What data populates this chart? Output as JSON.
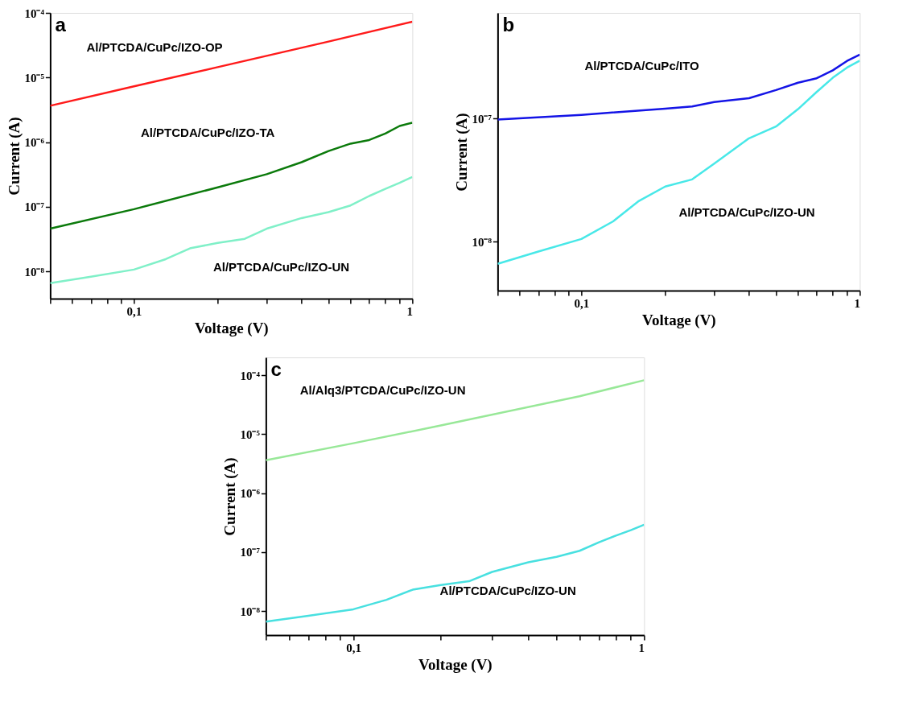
{
  "chart_data": [
    {
      "type": "line",
      "title": "a",
      "xlabel": "Voltage (V)",
      "ylabel": "Current  (A)",
      "log": "xy",
      "grid": false,
      "marker": "none",
      "line_style": "solid",
      "xlim": [
        0.05,
        1
      ],
      "ylim": [
        3.8e-09,
        0.0001
      ],
      "xticks": [
        {
          "value": 0.05,
          "label": null
        },
        {
          "value": 0.06,
          "label": null
        },
        {
          "value": 0.07,
          "label": null
        },
        {
          "value": 0.08,
          "label": null
        },
        {
          "value": 0.09,
          "label": null
        },
        {
          "value": 0.1,
          "label": "0,1"
        },
        {
          "value": 0.2,
          "label": null
        },
        {
          "value": 0.3,
          "label": null
        },
        {
          "value": 0.4,
          "label": null
        },
        {
          "value": 0.5,
          "label": null
        },
        {
          "value": 0.6,
          "label": null
        },
        {
          "value": 0.7,
          "label": null
        },
        {
          "value": 0.8,
          "label": null
        },
        {
          "value": 0.9,
          "label": null
        },
        1
      ],
      "yticks": [
        {
          "value": 1e-08,
          "label": "10⁻⁸"
        },
        {
          "value": 1e-07,
          "label": "10⁻⁷"
        },
        {
          "value": 1e-06,
          "label": "10⁻⁶"
        },
        {
          "value": 1e-05,
          "label": "10⁻⁵"
        },
        {
          "value": 0.0001,
          "label": "10⁻⁴"
        }
      ],
      "series": [
        {
          "name": "Al/PTCDA/CuPc/IZO-OP",
          "color": "#ff1a1a",
          "x": [
            0.05,
            0.1,
            0.2,
            0.5,
            1
          ],
          "values": [
            3.66e-06,
            7.3e-06,
            1.45e-05,
            3.6e-05,
            7.3e-05
          ]
        },
        {
          "name": "Al/PTCDA/CuPc/IZO-TA",
          "color": "#0b7a0b",
          "x": [
            0.05,
            0.1,
            0.2,
            0.3,
            0.4,
            0.5,
            0.6,
            0.7,
            0.8,
            0.9,
            1
          ],
          "values": [
            4.6e-08,
            9.2e-08,
            2e-07,
            3.2e-07,
            4.9e-07,
            7.3e-07,
            9.5e-07,
            1.08e-06,
            1.36e-06,
            1.78e-06,
            2e-06
          ]
        },
        {
          "name": "Al/PTCDA/CuPc/IZO-UN",
          "color": "#80f0c8",
          "x": [
            0.05,
            0.07,
            0.1,
            0.13,
            0.16,
            0.2,
            0.25,
            0.3,
            0.4,
            0.5,
            0.6,
            0.7,
            0.8,
            0.9,
            1
          ],
          "values": [
            6.6e-09,
            8.3e-09,
            1.07e-08,
            1.55e-08,
            2.3e-08,
            2.76e-08,
            3.2e-08,
            4.6e-08,
            6.7e-08,
            8.3e-08,
            1.05e-07,
            1.47e-07,
            1.9e-07,
            2.35e-07,
            2.9e-07
          ]
        }
      ]
    },
    {
      "type": "line",
      "title": "b",
      "xlabel": "Voltage (V)",
      "ylabel": "Current  (A)",
      "log": "xy",
      "grid": false,
      "marker": "none",
      "line_style": "solid",
      "xlim": [
        0.05,
        1
      ],
      "ylim": [
        4e-09,
        7.2e-07
      ],
      "xticks": [
        {
          "value": 0.05,
          "label": null
        },
        {
          "value": 0.06,
          "label": null
        },
        {
          "value": 0.07,
          "label": null
        },
        {
          "value": 0.08,
          "label": null
        },
        {
          "value": 0.09,
          "label": null
        },
        {
          "value": 0.1,
          "label": "0,1"
        },
        {
          "value": 0.2,
          "label": null
        },
        {
          "value": 0.3,
          "label": null
        },
        {
          "value": 0.4,
          "label": null
        },
        {
          "value": 0.5,
          "label": null
        },
        {
          "value": 0.6,
          "label": null
        },
        {
          "value": 0.7,
          "label": null
        },
        {
          "value": 0.8,
          "label": null
        },
        {
          "value": 0.9,
          "label": null
        },
        1
      ],
      "yticks": [
        {
          "value": 1e-08,
          "label": "10⁻⁸"
        },
        {
          "value": 1e-07,
          "label": "10⁻⁷"
        }
      ],
      "series": [
        {
          "name": "Al/PTCDA/CuPc/ITO",
          "color": "#1414e6",
          "x": [
            0.05,
            0.1,
            0.2,
            0.25,
            0.3,
            0.4,
            0.5,
            0.6,
            0.7,
            0.8,
            0.9,
            1
          ],
          "values": [
            9.8e-08,
            1.07e-07,
            1.2e-07,
            1.25e-07,
            1.36e-07,
            1.46e-07,
            1.7e-07,
            1.95e-07,
            2.12e-07,
            2.46e-07,
            2.93e-07,
            3.3e-07
          ]
        },
        {
          "name": "Al/PTCDA/CuPc/IZO-UN",
          "color": "#48e8e8",
          "x": [
            0.05,
            0.07,
            0.1,
            0.13,
            0.16,
            0.2,
            0.25,
            0.3,
            0.4,
            0.5,
            0.6,
            0.7,
            0.8,
            0.9,
            1
          ],
          "values": [
            6.6e-09,
            8.3e-09,
            1.05e-08,
            1.46e-08,
            2.12e-08,
            2.8e-08,
            3.2e-08,
            4.3e-08,
            6.9e-08,
            8.6e-08,
            1.19e-07,
            1.64e-07,
            2.14e-07,
            2.59e-07,
            2.95e-07
          ]
        }
      ]
    },
    {
      "type": "line",
      "title": "c",
      "xlabel": "Voltage (V)",
      "ylabel": "Current  (A)",
      "log": "xy",
      "grid": false,
      "marker": "none",
      "line_style": "solid",
      "xlim": [
        0.05,
        1
      ],
      "ylim": [
        3.9e-09,
        0.0002
      ],
      "xticks": [
        {
          "value": 0.05,
          "label": null
        },
        {
          "value": 0.06,
          "label": null
        },
        {
          "value": 0.07,
          "label": null
        },
        {
          "value": 0.08,
          "label": null
        },
        {
          "value": 0.09,
          "label": null
        },
        {
          "value": 0.1,
          "label": "0,1"
        },
        {
          "value": 0.2,
          "label": null
        },
        {
          "value": 0.3,
          "label": null
        },
        {
          "value": 0.4,
          "label": null
        },
        {
          "value": 0.5,
          "label": null
        },
        {
          "value": 0.6,
          "label": null
        },
        {
          "value": 0.7,
          "label": null
        },
        {
          "value": 0.8,
          "label": null
        },
        {
          "value": 0.9,
          "label": null
        },
        1
      ],
      "yticks": [
        {
          "value": 1e-08,
          "label": "10⁻⁸"
        },
        {
          "value": 1e-07,
          "label": "10⁻⁷"
        },
        {
          "value": 1e-06,
          "label": "10⁻⁶"
        },
        {
          "value": 1e-05,
          "label": "10⁻⁵"
        },
        {
          "value": 0.0001,
          "label": "10⁻⁴"
        }
      ],
      "series": [
        {
          "name": "Al/Alq3/PTCDA/CuPc/IZO-UN",
          "color": "#98e898",
          "x": [
            0.05,
            0.1,
            0.2,
            0.6,
            1
          ],
          "values": [
            3.6e-06,
            7e-06,
            1.4e-05,
            4.4e-05,
            8.2e-05
          ]
        },
        {
          "name": "Al/PTCDA/CuPc/IZO-UN",
          "color": "#48e0e0",
          "x": [
            0.05,
            0.07,
            0.1,
            0.13,
            0.16,
            0.2,
            0.25,
            0.3,
            0.4,
            0.5,
            0.6,
            0.7,
            0.8,
            0.9,
            1
          ],
          "values": [
            6.6e-09,
            8.3e-09,
            1.07e-08,
            1.55e-08,
            2.3e-08,
            2.76e-08,
            3.2e-08,
            4.6e-08,
            6.7e-08,
            8.3e-08,
            1.05e-07,
            1.47e-07,
            1.9e-07,
            2.35e-07,
            2.9e-07
          ]
        }
      ]
    }
  ]
}
